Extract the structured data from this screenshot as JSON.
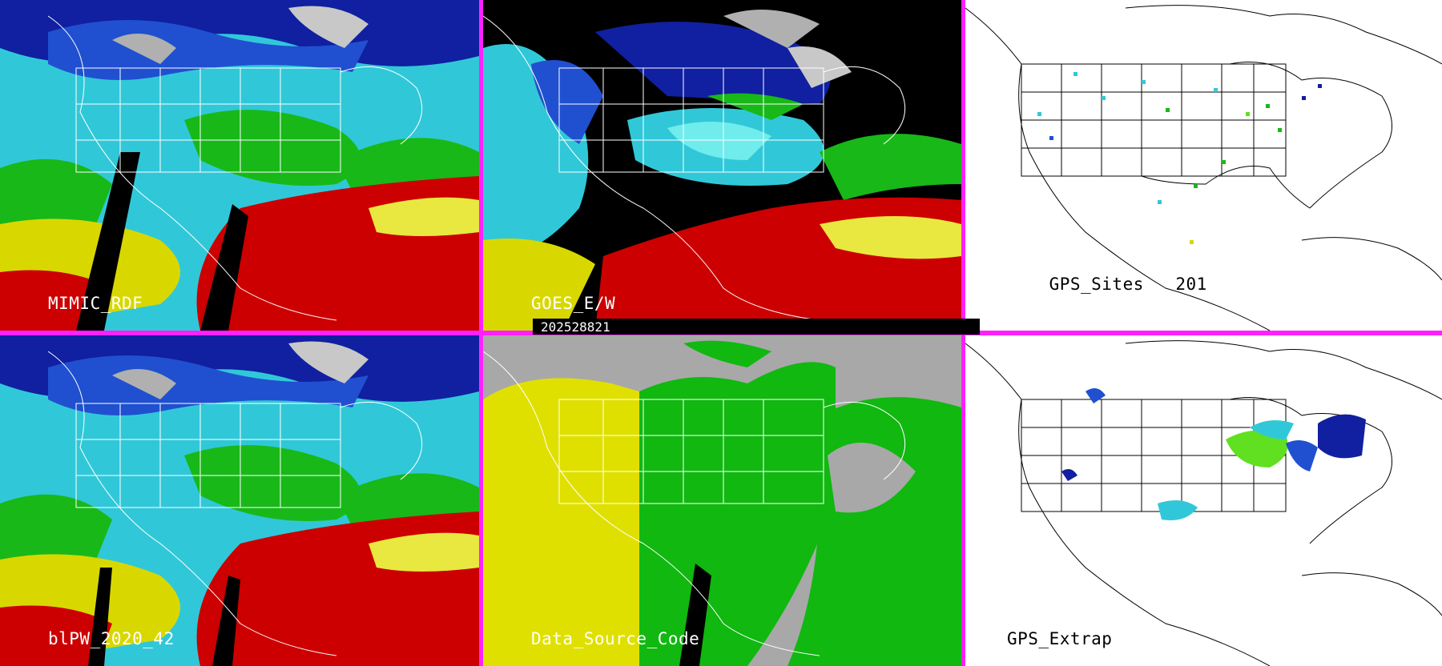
{
  "panels": {
    "top_left": {
      "label": "MIMIC_RDF"
    },
    "top_mid": {
      "label": "GOES_E/W"
    },
    "top_right": {
      "label": "GPS_Sites",
      "count": "201"
    },
    "bottom_left": {
      "label": "blPW_2020_42"
    },
    "bottom_mid": {
      "label": "Data_Source_Code"
    },
    "bottom_right": {
      "label": "GPS_Extrap"
    }
  },
  "date_stamp": "202528821",
  "colors": {
    "divider": "#ff20ff",
    "pw_palette": [
      "#1020a0",
      "#2050d0",
      "#30c8d8",
      "#70ecec",
      "#18b818",
      "#60e020",
      "#d8d800",
      "#e8e840",
      "#cc0000",
      "#e02020",
      "#a0a0a0",
      "#e0e0e0"
    ],
    "data_source": {
      "background": "#a8a8a8",
      "west": "#e0e000",
      "east": "#10b810"
    }
  }
}
